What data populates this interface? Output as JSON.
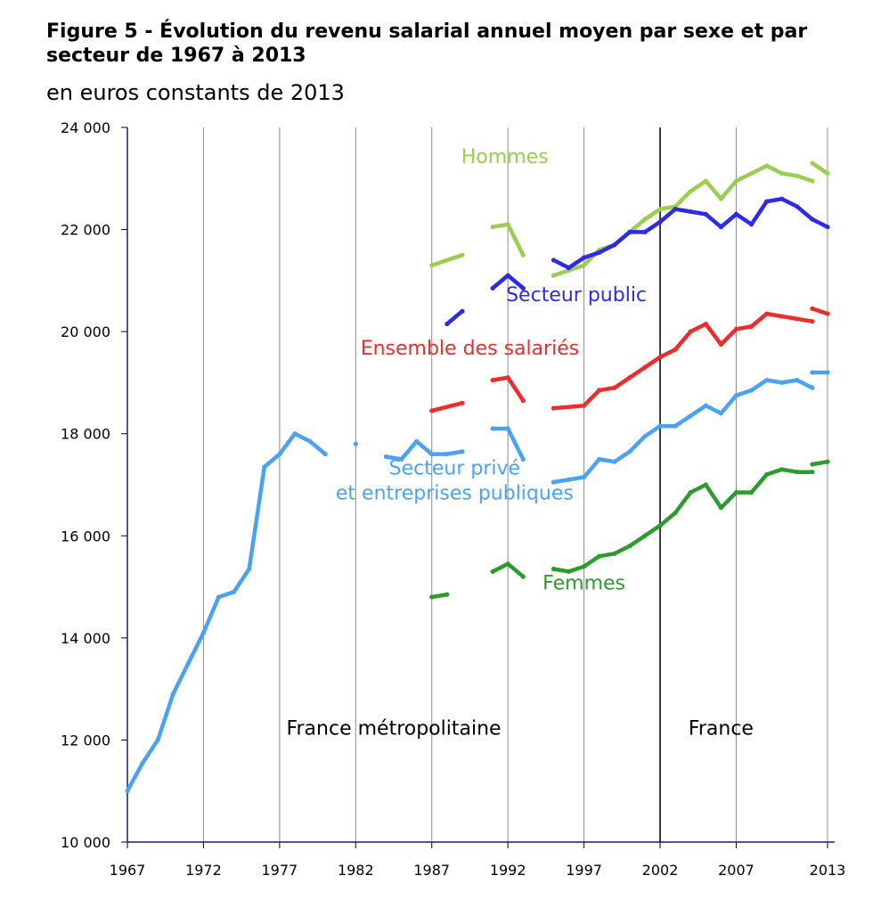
{
  "title": "Figure 5 - Évolution du revenu salarial annuel moyen par sexe et par secteur de 1967 à 2013",
  "subtitle": "en euros constants de 2013",
  "chart_data": {
    "type": "line",
    "xlim": [
      1967,
      2013
    ],
    "ylim": [
      10000,
      24000
    ],
    "x_ticks": [
      1967,
      1972,
      1977,
      1982,
      1987,
      1992,
      1997,
      2002,
      2007,
      2013
    ],
    "y_ticks": [
      10000,
      12000,
      14000,
      16000,
      18000,
      20000,
      22000,
      24000
    ],
    "y_tick_labels": [
      "10 000",
      "12 000",
      "14 000",
      "16 000",
      "18 000",
      "20 000",
      "22 000",
      "24 000"
    ],
    "grid": true,
    "divider_x": 2002,
    "regions": [
      {
        "label": "France métropolitaine",
        "x": 1984.5,
        "y": 12100
      },
      {
        "label": "France",
        "x": 2006,
        "y": 12100
      }
    ],
    "series": [
      {
        "name": "Hommes",
        "color": "#9ACD50",
        "label_pos": {
          "x": 1991.8,
          "y": 23300
        },
        "segments": [
          [
            [
              1987,
              21300
            ],
            [
              1989,
              21500
            ]
          ],
          [
            [
              1991,
              22050
            ],
            [
              1992,
              22100
            ],
            [
              1993,
              21500
            ]
          ],
          [
            [
              1995,
              21100
            ],
            [
              1996,
              21200
            ],
            [
              1997,
              21300
            ],
            [
              1998,
              21600
            ],
            [
              1999,
              21700
            ],
            [
              2000,
              21950
            ],
            [
              2001,
              22200
            ],
            [
              2002,
              22400
            ],
            [
              2003,
              22450
            ],
            [
              2004,
              22750
            ],
            [
              2005,
              22950
            ],
            [
              2006,
              22600
            ],
            [
              2007,
              22950
            ],
            [
              2008,
              23100
            ],
            [
              2009,
              23250
            ],
            [
              2010,
              23100
            ],
            [
              2011,
              23050
            ],
            [
              2012,
              22950
            ]
          ],
          [
            [
              2012,
              23300
            ],
            [
              2013,
              23100
            ]
          ]
        ]
      },
      {
        "name": "Secteur public",
        "color": "#2B2BE8",
        "label_pos": {
          "x": 1996.5,
          "y": 20600
        },
        "segments": [
          [
            [
              1988,
              20150
            ],
            [
              1989,
              20400
            ]
          ],
          [
            [
              1991,
              20850
            ],
            [
              1992,
              21100
            ],
            [
              1993,
              20850
            ]
          ],
          [
            [
              1995,
              21400
            ],
            [
              1996,
              21250
            ],
            [
              1997,
              21450
            ],
            [
              1998,
              21550
            ],
            [
              1999,
              21700
            ],
            [
              2000,
              21950
            ],
            [
              2001,
              21950
            ],
            [
              2002,
              22150
            ],
            [
              2003,
              22400
            ],
            [
              2004,
              22350
            ],
            [
              2005,
              22300
            ],
            [
              2006,
              22050
            ],
            [
              2007,
              22300
            ],
            [
              2008,
              22100
            ],
            [
              2009,
              22550
            ],
            [
              2010,
              22600
            ],
            [
              2011,
              22450
            ],
            [
              2012,
              22200
            ],
            [
              2013,
              22050
            ]
          ]
        ]
      },
      {
        "name": "Ensemble des salariés",
        "color": "#EE2C2C",
        "label_pos": {
          "x": 1989.5,
          "y": 19550
        },
        "segments": [
          [
            [
              1987,
              18450
            ],
            [
              1989,
              18600
            ]
          ],
          [
            [
              1991,
              19050
            ],
            [
              1992,
              19100
            ],
            [
              1993,
              18650
            ]
          ],
          [
            [
              1995,
              18500
            ],
            [
              1997,
              18550
            ],
            [
              1998,
              18850
            ],
            [
              1999,
              18900
            ],
            [
              2000,
              19100
            ],
            [
              2001,
              19300
            ],
            [
              2002,
              19500
            ],
            [
              2003,
              19650
            ],
            [
              2004,
              20000
            ],
            [
              2005,
              20150
            ],
            [
              2006,
              19750
            ],
            [
              2007,
              20050
            ],
            [
              2008,
              20100
            ],
            [
              2009,
              20350
            ],
            [
              2010,
              20300
            ],
            [
              2011,
              20250
            ],
            [
              2012,
              20200
            ]
          ],
          [
            [
              2012,
              20450
            ],
            [
              2013,
              20350
            ]
          ]
        ]
      },
      {
        "name": "Secteur privé et entreprises publiques",
        "label_lines": [
          "Secteur privé",
          "et entreprises publiques"
        ],
        "color": "#4AA3F0",
        "label_pos": {
          "x": 1988.5,
          "y": 17200
        },
        "segments": [
          [
            [
              1967,
              11000
            ],
            [
              1968,
              11550
            ],
            [
              1969,
              12000
            ],
            [
              1970,
              12900
            ],
            [
              1971,
              13500
            ],
            [
              1972,
              14100
            ],
            [
              1973,
              14800
            ],
            [
              1974,
              14900
            ],
            [
              1975,
              15350
            ],
            [
              1976,
              17350
            ],
            [
              1977,
              17600
            ],
            [
              1978,
              18000
            ],
            [
              1979,
              17850
            ],
            [
              1980,
              17600
            ]
          ],
          [
            [
              1982,
              17800
            ]
          ],
          [
            [
              1984,
              17550
            ],
            [
              1985,
              17500
            ],
            [
              1986,
              17850
            ],
            [
              1987,
              17600
            ],
            [
              1988,
              17600
            ],
            [
              1989,
              17650
            ]
          ],
          [
            [
              1991,
              18100
            ],
            [
              1992,
              18100
            ],
            [
              1993,
              17500
            ]
          ],
          [
            [
              1995,
              17050
            ],
            [
              1996,
              17100
            ],
            [
              1997,
              17150
            ],
            [
              1998,
              17500
            ],
            [
              1999,
              17450
            ],
            [
              2000,
              17650
            ],
            [
              2001,
              17950
            ],
            [
              2002,
              18150
            ],
            [
              2003,
              18150
            ],
            [
              2004,
              18350
            ],
            [
              2005,
              18550
            ],
            [
              2006,
              18400
            ],
            [
              2007,
              18750
            ],
            [
              2008,
              18850
            ],
            [
              2009,
              19050
            ],
            [
              2010,
              19000
            ],
            [
              2011,
              19050
            ],
            [
              2012,
              18900
            ]
          ],
          [
            [
              2012,
              19200
            ],
            [
              2013,
              19200
            ]
          ]
        ]
      },
      {
        "name": "Femmes",
        "color": "#2E9B2E",
        "label_pos": {
          "x": 1997,
          "y": 14950
        },
        "segments": [
          [
            [
              1987,
              14800
            ],
            [
              1988,
              14850
            ]
          ],
          [
            [
              1991,
              15300
            ],
            [
              1992,
              15450
            ],
            [
              1993,
              15200
            ]
          ],
          [
            [
              1995,
              15350
            ],
            [
              1996,
              15300
            ],
            [
              1997,
              15400
            ],
            [
              1998,
              15600
            ],
            [
              1999,
              15650
            ],
            [
              2000,
              15800
            ],
            [
              2001,
              16000
            ],
            [
              2002,
              16200
            ],
            [
              2003,
              16450
            ],
            [
              2004,
              16850
            ],
            [
              2005,
              17000
            ],
            [
              2006,
              16550
            ],
            [
              2007,
              16850
            ],
            [
              2008,
              16850
            ],
            [
              2009,
              17200
            ],
            [
              2010,
              17300
            ],
            [
              2011,
              17250
            ],
            [
              2012,
              17250
            ]
          ],
          [
            [
              2012,
              17400
            ],
            [
              2013,
              17450
            ]
          ]
        ]
      }
    ]
  }
}
